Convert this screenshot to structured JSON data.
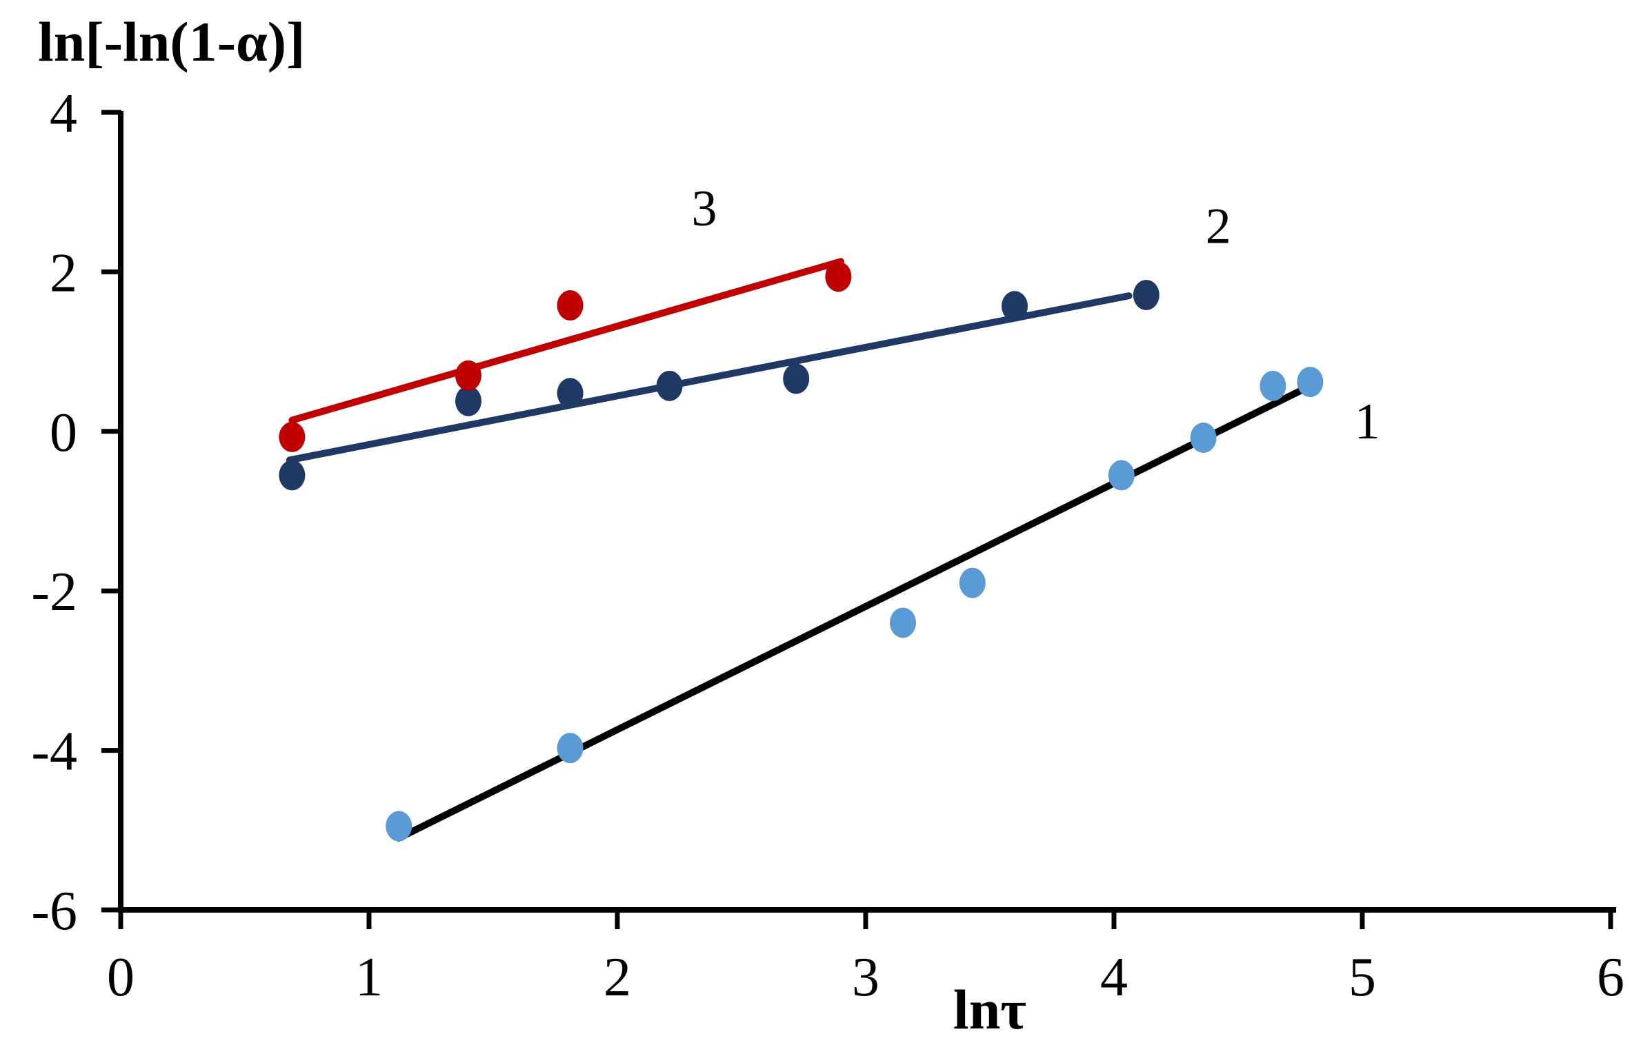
{
  "chart_data": {
    "type": "scatter",
    "title": "",
    "xlabel": "lnτ",
    "ylabel": "ln[-ln(1-α)]",
    "xlim": [
      0,
      6
    ],
    "ylim": [
      -6,
      4
    ],
    "x_ticks": [
      0,
      1,
      2,
      3,
      4,
      5,
      6
    ],
    "y_ticks": [
      4,
      2,
      0,
      -2,
      -4,
      -6
    ],
    "grid": false,
    "legend_position": "none",
    "background_color": "#ffffff",
    "axis_color": "#000000",
    "series": [
      {
        "name": "1",
        "marker_color": "#5B9BD5",
        "trendline_color": "#000000",
        "label_pos": {
          "x": 5.02,
          "y": 0.13
        },
        "points": [
          {
            "x": 1.12,
            "y": -4.95
          },
          {
            "x": 1.81,
            "y": -3.97
          },
          {
            "x": 3.15,
            "y": -2.4
          },
          {
            "x": 3.43,
            "y": -1.9
          },
          {
            "x": 4.03,
            "y": -0.55
          },
          {
            "x": 4.36,
            "y": -0.08
          },
          {
            "x": 4.64,
            "y": 0.57
          },
          {
            "x": 4.79,
            "y": 0.62
          }
        ],
        "trendline": {
          "x1": 1.12,
          "y1": -5.1,
          "x2": 4.79,
          "y2": 0.57
        }
      },
      {
        "name": "2",
        "marker_color": "#1F3864",
        "trendline_color": "#1F3864",
        "label_pos": {
          "x": 4.42,
          "y": 2.58
        },
        "points": [
          {
            "x": 0.69,
            "y": -0.55
          },
          {
            "x": 1.4,
            "y": 0.38
          },
          {
            "x": 1.81,
            "y": 0.48
          },
          {
            "x": 2.21,
            "y": 0.57
          },
          {
            "x": 2.72,
            "y": 0.66
          },
          {
            "x": 3.6,
            "y": 1.57
          },
          {
            "x": 4.13,
            "y": 1.71
          }
        ],
        "trendline": {
          "x1": 0.68,
          "y1": -0.36,
          "x2": 4.06,
          "y2": 1.7
        }
      },
      {
        "name": "3",
        "marker_color": "#C00000",
        "trendline_color": "#C00000",
        "label_pos": {
          "x": 2.35,
          "y": 2.8
        },
        "points": [
          {
            "x": 0.69,
            "y": -0.07
          },
          {
            "x": 1.4,
            "y": 0.7
          },
          {
            "x": 1.81,
            "y": 1.58
          },
          {
            "x": 2.89,
            "y": 1.94
          }
        ],
        "trendline": {
          "x1": 0.69,
          "y1": 0.14,
          "x2": 2.9,
          "y2": 2.13
        }
      }
    ]
  }
}
